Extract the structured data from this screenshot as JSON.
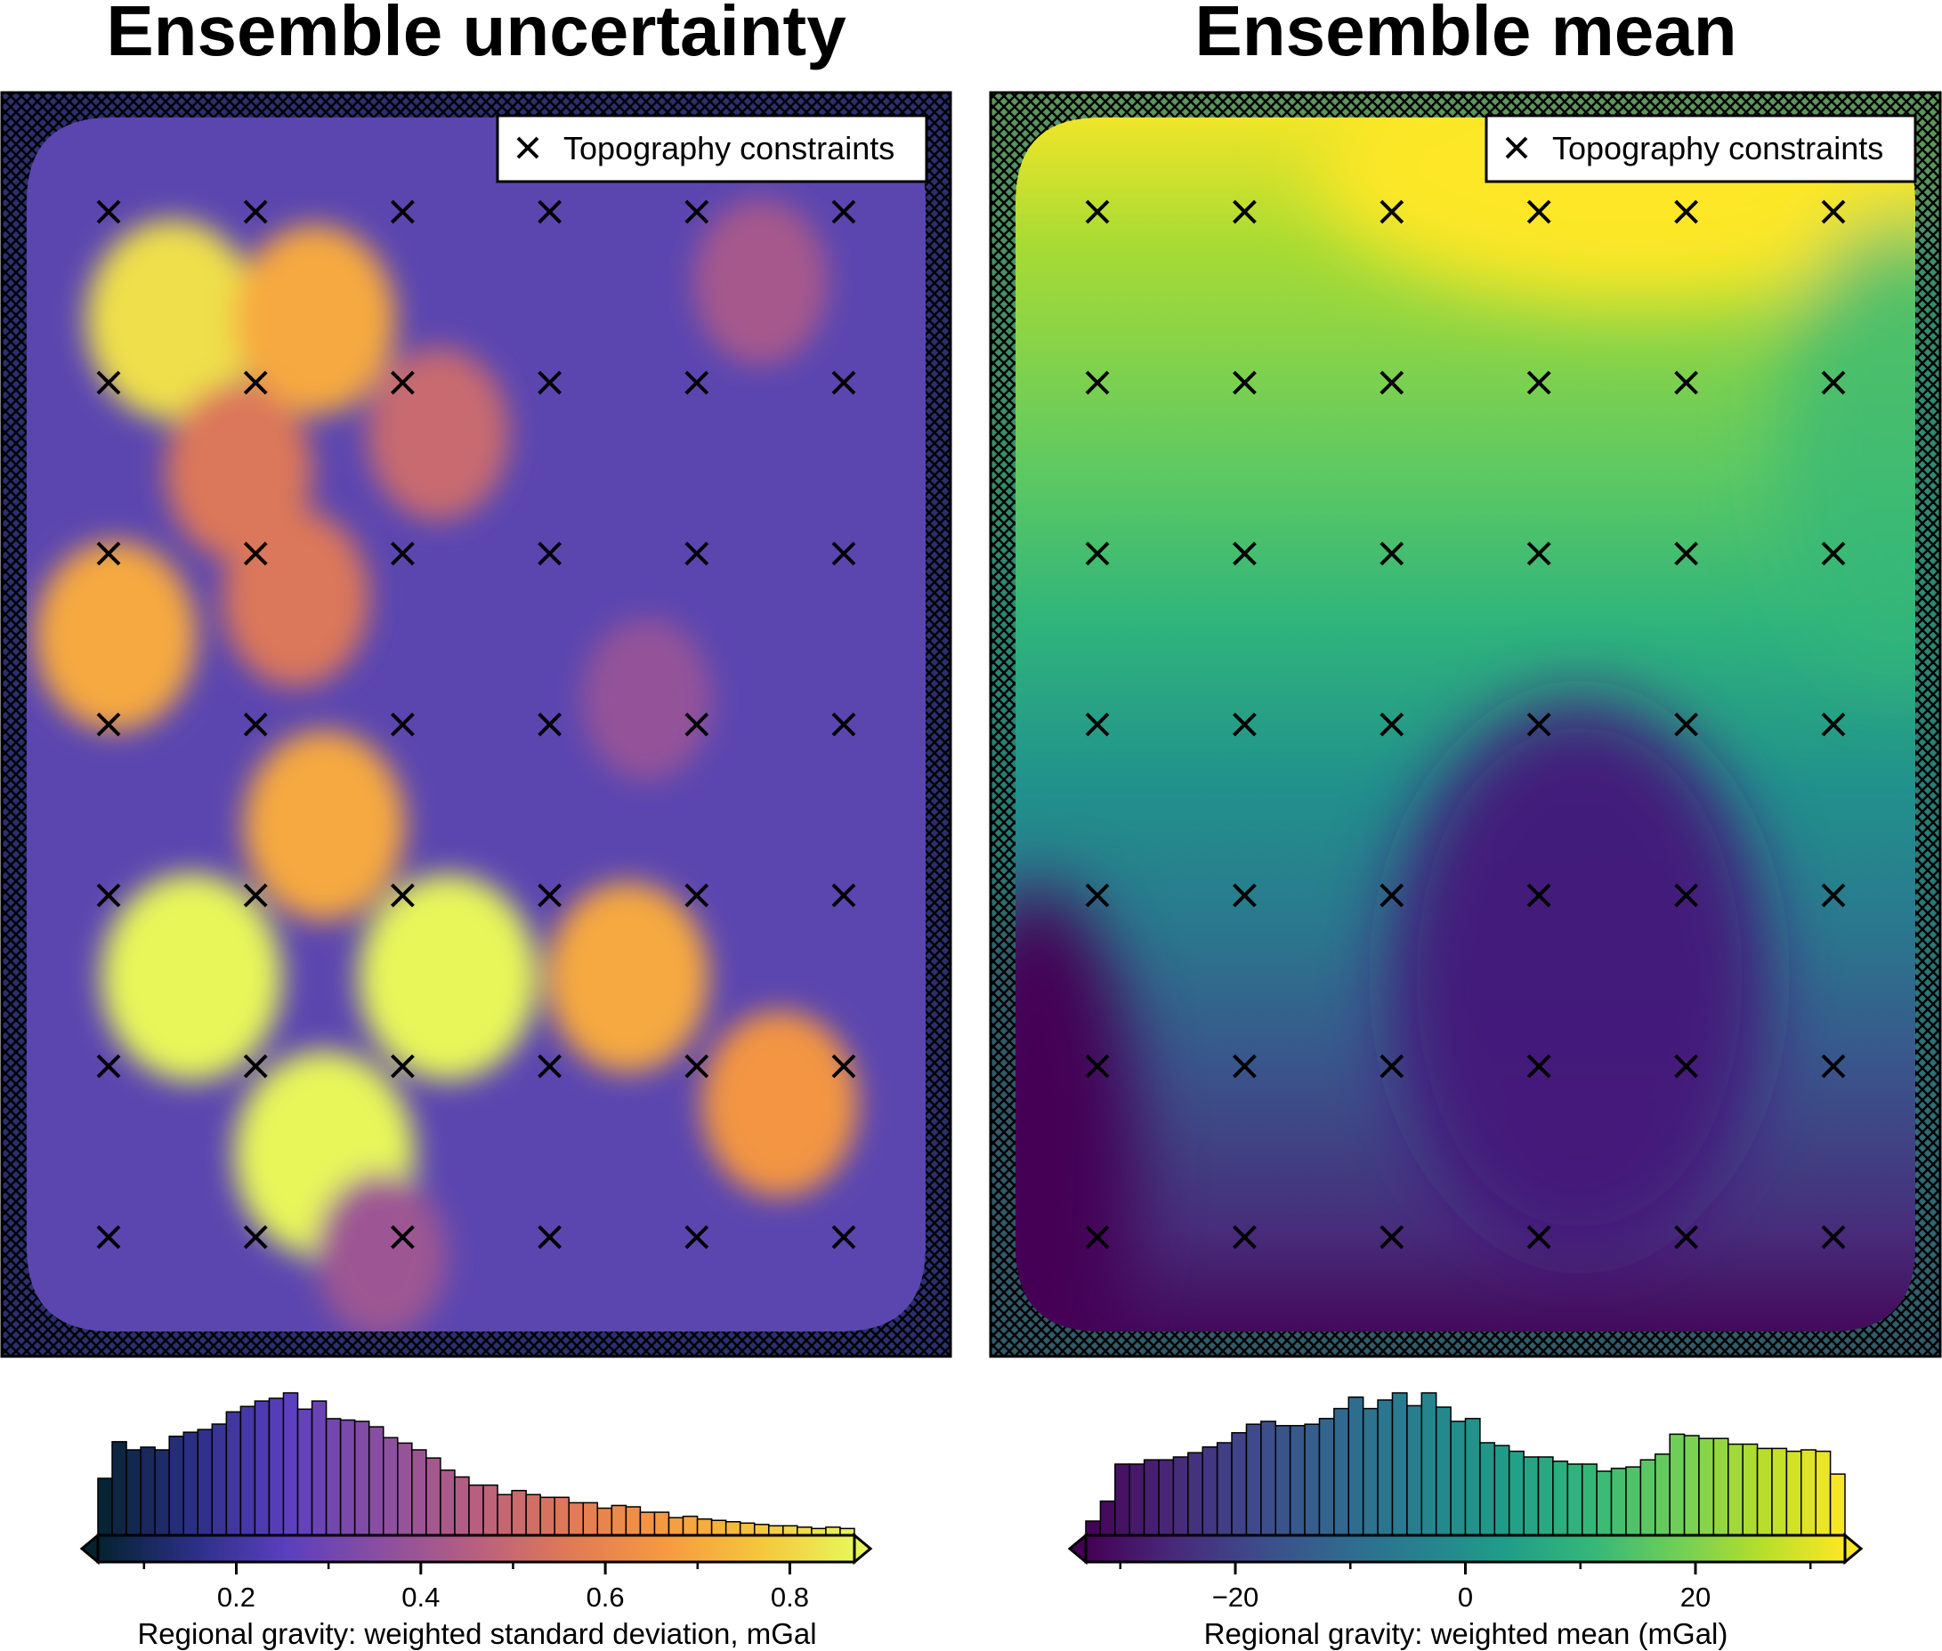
{
  "chart_data": [
    {
      "type": "heatmap",
      "title": "Ensemble uncertainty",
      "colormap": "thermal",
      "colors": [
        "#04232e",
        "#2b2f85",
        "#5b3fbf",
        "#8a4fa0",
        "#b85f80",
        "#e07a55",
        "#f69a40",
        "#f5c63c",
        "#e8f65a"
      ],
      "legend": {
        "label": "Topography constraints",
        "marker": "x-cross",
        "position": "top-right"
      },
      "constraint_grid": {
        "columns": 6,
        "rows": 7,
        "marker": "x"
      },
      "hotspots": [
        {
          "x": 0.18,
          "y": 0.18,
          "value": 0.82
        },
        {
          "x": 0.33,
          "y": 0.18,
          "value": 0.7
        },
        {
          "x": 0.12,
          "y": 0.43,
          "value": 0.7
        },
        {
          "x": 0.31,
          "y": 0.4,
          "value": 0.55
        },
        {
          "x": 0.46,
          "y": 0.27,
          "value": 0.5
        },
        {
          "x": 0.34,
          "y": 0.58,
          "value": 0.7
        },
        {
          "x": 0.2,
          "y": 0.7,
          "value": 0.9
        },
        {
          "x": 0.47,
          "y": 0.7,
          "value": 0.88
        },
        {
          "x": 0.66,
          "y": 0.7,
          "value": 0.7
        },
        {
          "x": 0.34,
          "y": 0.84,
          "value": 0.9
        },
        {
          "x": 0.82,
          "y": 0.8,
          "value": 0.65
        },
        {
          "x": 0.8,
          "y": 0.15,
          "value": 0.42
        },
        {
          "x": 0.68,
          "y": 0.48,
          "value": 0.38
        },
        {
          "x": 0.4,
          "y": 0.92,
          "value": 0.4
        },
        {
          "x": 0.25,
          "y": 0.3,
          "value": 0.55
        }
      ],
      "colorbar": {
        "label": "Regional gravity: weighted standard deviation, mGal",
        "range": [
          0.05,
          0.87
        ],
        "ticks": [
          0.2,
          0.4,
          0.6,
          0.8
        ],
        "tick_labels": [
          "0.2",
          "0.4",
          "0.6",
          "0.8"
        ],
        "extend": "both",
        "histogram_counts": [
          42,
          69,
          63,
          65,
          63,
          73,
          76,
          78,
          82,
          91,
          95,
          99,
          101,
          105,
          93,
          99,
          86,
          85,
          84,
          80,
          72,
          68,
          63,
          57,
          48,
          43,
          37,
          37,
          30,
          33,
          30,
          28,
          28,
          24,
          24,
          20,
          22,
          21,
          17,
          17,
          13,
          14,
          12,
          11,
          10,
          9,
          8,
          7,
          7,
          6,
          5,
          6,
          5
        ]
      }
    },
    {
      "type": "heatmap",
      "title": "Ensemble mean",
      "colormap": "viridis",
      "colors": [
        "#440154",
        "#482878",
        "#3e4a89",
        "#31688e",
        "#26828e",
        "#1f9e89",
        "#35b779",
        "#6ece58",
        "#b5de2b",
        "#fde725"
      ],
      "legend": {
        "label": "Topography constraints",
        "marker": "x-cross",
        "position": "top-right"
      },
      "constraint_grid": {
        "columns": 6,
        "rows": 7,
        "marker": "x"
      },
      "colorbar": {
        "label": "Regional gravity: weighted mean (mGal)",
        "range": [
          -33,
          33
        ],
        "ticks": [
          -20,
          0,
          20
        ],
        "tick_labels": [
          "−20",
          "0",
          "20"
        ],
        "extend": "both",
        "histogram_counts": [
          10,
          24,
          50,
          50,
          53,
          53,
          55,
          58,
          62,
          65,
          72,
          78,
          80,
          77,
          77,
          78,
          82,
          89,
          97,
          89,
          95,
          100,
          91,
          100,
          90,
          80,
          82,
          65,
          63,
          59,
          55,
          55,
          52,
          50,
          50,
          45,
          47,
          48,
          53,
          57,
          71,
          70,
          68,
          68,
          64,
          64,
          61,
          61,
          59,
          60,
          59,
          43
        ]
      }
    }
  ]
}
